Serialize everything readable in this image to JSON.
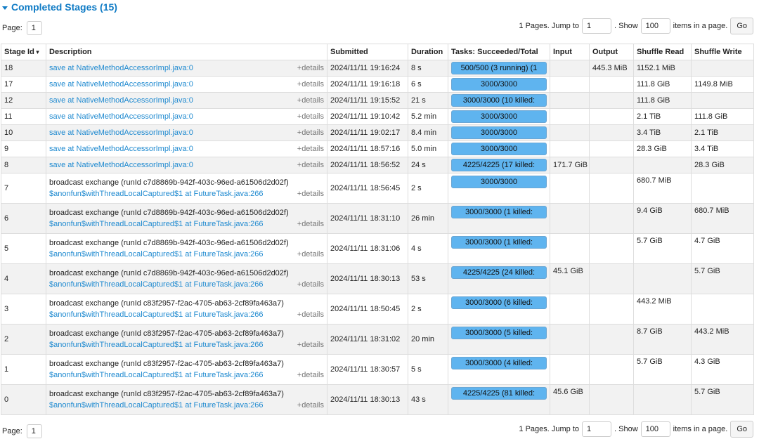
{
  "header": {
    "title": "Completed Stages (15)"
  },
  "pagination": {
    "page_label": "Page:",
    "page": "1",
    "pages_text": "1 Pages. Jump to",
    "jump_value": "1",
    "show_label": ". Show",
    "show_value": "100",
    "items_text": "items in a page.",
    "go": "Go"
  },
  "table": {
    "columns": [
      "Stage Id",
      "Description",
      "Submitted",
      "Duration",
      "Tasks: Succeeded/Total",
      "Input",
      "Output",
      "Shuffle Read",
      "Shuffle Write"
    ],
    "rows": [
      [
        "18",
        "save at NativeMethodAccessorImpl.java:0",
        null,
        "+details",
        "2024/11/11 19:16:24",
        "8 s",
        "500/500 (3 running) (1",
        null,
        "445.3 MiB",
        "1152.1 MiB",
        null
      ],
      [
        "17",
        "save at NativeMethodAccessorImpl.java:0",
        null,
        "+details",
        "2024/11/11 19:16:18",
        "6 s",
        "3000/3000",
        null,
        null,
        "111.8 GiB",
        "1149.8 MiB"
      ],
      [
        "12",
        "save at NativeMethodAccessorImpl.java:0",
        null,
        "+details",
        "2024/11/11 19:15:52",
        "21 s",
        "3000/3000 (10 killed:",
        null,
        null,
        "111.8 GiB",
        null
      ],
      [
        "11",
        "save at NativeMethodAccessorImpl.java:0",
        null,
        "+details",
        "2024/11/11 19:10:42",
        "5.2 min",
        "3000/3000",
        null,
        null,
        "2.1 TiB",
        "111.8 GiB"
      ],
      [
        "10",
        "save at NativeMethodAccessorImpl.java:0",
        null,
        "+details",
        "2024/11/11 19:02:17",
        "8.4 min",
        "3000/3000",
        null,
        null,
        "3.4 TiB",
        "2.1 TiB"
      ],
      [
        "9",
        "save at NativeMethodAccessorImpl.java:0",
        null,
        "+details",
        "2024/11/11 18:57:16",
        "5.0 min",
        "3000/3000",
        null,
        null,
        "28.3 GiB",
        "3.4 TiB"
      ],
      [
        "8",
        "save at NativeMethodAccessorImpl.java:0",
        null,
        "+details",
        "2024/11/11 18:56:52",
        "24 s",
        "4225/4225 (17 killed:",
        "171.7 GiB",
        null,
        null,
        "28.3 GiB"
      ],
      [
        "7",
        "broadcast exchange (runId c7d8869b-942f-403c-96ed-a61506d2d02f)",
        "$anonfun$withThreadLocalCaptured$1 at FutureTask.java:266",
        "+details",
        "2024/11/11 18:56:45",
        "2 s",
        "3000/3000",
        null,
        null,
        "680.7 MiB",
        null
      ],
      [
        "6",
        "broadcast exchange (runId c7d8869b-942f-403c-96ed-a61506d2d02f)",
        "$anonfun$withThreadLocalCaptured$1 at FutureTask.java:266",
        "+details",
        "2024/11/11 18:31:10",
        "26 min",
        "3000/3000 (1 killed:",
        null,
        null,
        "9.4 GiB",
        "680.7 MiB"
      ],
      [
        "5",
        "broadcast exchange (runId c7d8869b-942f-403c-96ed-a61506d2d02f)",
        "$anonfun$withThreadLocalCaptured$1 at FutureTask.java:266",
        "+details",
        "2024/11/11 18:31:06",
        "4 s",
        "3000/3000 (1 killed:",
        null,
        null,
        "5.7 GiB",
        "4.7 GiB"
      ],
      [
        "4",
        "broadcast exchange (runId c7d8869b-942f-403c-96ed-a61506d2d02f)",
        "$anonfun$withThreadLocalCaptured$1 at FutureTask.java:266",
        "+details",
        "2024/11/11 18:30:13",
        "53 s",
        "4225/4225 (24 killed:",
        "45.1 GiB",
        null,
        null,
        "5.7 GiB"
      ],
      [
        "3",
        "broadcast exchange (runId c83f2957-f2ac-4705-ab63-2cf89fa463a7)",
        "$anonfun$withThreadLocalCaptured$1 at FutureTask.java:266",
        "+details",
        "2024/11/11 18:50:45",
        "2 s",
        "3000/3000 (6 killed:",
        null,
        null,
        "443.2 MiB",
        null
      ],
      [
        "2",
        "broadcast exchange (runId c83f2957-f2ac-4705-ab63-2cf89fa463a7)",
        "$anonfun$withThreadLocalCaptured$1 at FutureTask.java:266",
        "+details",
        "2024/11/11 18:31:02",
        "20 min",
        "3000/3000 (5 killed:",
        null,
        null,
        "8.7 GiB",
        "443.2 MiB"
      ],
      [
        "1",
        "broadcast exchange (runId c83f2957-f2ac-4705-ab63-2cf89fa463a7)",
        "$anonfun$withThreadLocalCaptured$1 at FutureTask.java:266",
        "+details",
        "2024/11/11 18:30:57",
        "5 s",
        "3000/3000 (4 killed:",
        null,
        null,
        "5.7 GiB",
        "4.3 GiB"
      ],
      [
        "0",
        "broadcast exchange (runId c83f2957-f2ac-4705-ab63-2cf89fa463a7)",
        "$anonfun$withThreadLocalCaptured$1 at FutureTask.java:266",
        "+details",
        "2024/11/11 18:30:13",
        "43 s",
        "4225/4225 (81 killed:",
        "45.6 GiB",
        null,
        null,
        "5.7 GiB"
      ]
    ]
  }
}
